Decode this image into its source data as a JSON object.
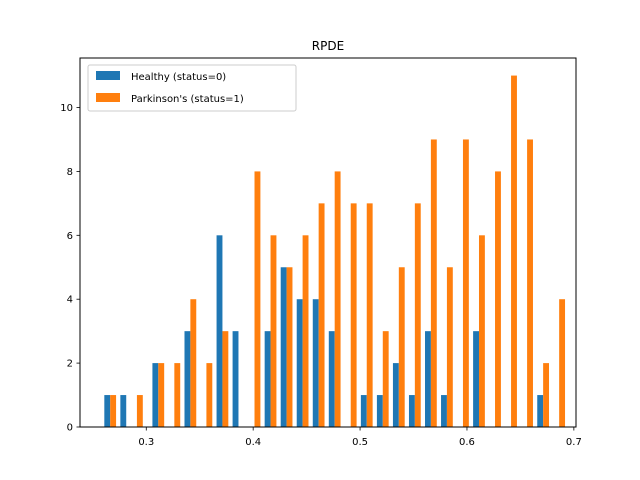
{
  "chart_data": {
    "type": "bar",
    "title": "RPDE",
    "xlabel": "",
    "ylabel": "",
    "xlim": [
      0.238,
      0.702
    ],
    "ylim": [
      0,
      11.55
    ],
    "xticks": [
      0.3,
      0.4,
      0.5,
      0.6,
      0.7
    ],
    "yticks": [
      0,
      2,
      4,
      6,
      8,
      10
    ],
    "grid": false,
    "legend_position": "top-left",
    "bar_width": 0.0055,
    "series": [
      {
        "name": "Healthy (status=0)",
        "color": "#1f77b4",
        "bars": [
          {
            "x": 0.2635,
            "value": 1
          },
          {
            "x": 0.2785,
            "value": 1
          },
          {
            "x": 0.3085,
            "value": 2
          },
          {
            "x": 0.3385,
            "value": 3
          },
          {
            "x": 0.3685,
            "value": 6
          },
          {
            "x": 0.3835,
            "value": 3
          },
          {
            "x": 0.4135,
            "value": 3
          },
          {
            "x": 0.4285,
            "value": 5
          },
          {
            "x": 0.4435,
            "value": 4
          },
          {
            "x": 0.4585,
            "value": 4
          },
          {
            "x": 0.4735,
            "value": 3
          },
          {
            "x": 0.5035,
            "value": 1
          },
          {
            "x": 0.5185,
            "value": 1
          },
          {
            "x": 0.5335,
            "value": 2
          },
          {
            "x": 0.5485,
            "value": 1
          },
          {
            "x": 0.5635,
            "value": 3
          },
          {
            "x": 0.5785,
            "value": 1
          },
          {
            "x": 0.6085,
            "value": 3
          },
          {
            "x": 0.6685,
            "value": 1
          }
        ]
      },
      {
        "name": "Parkinson's (status=1)",
        "color": "#ff7f0e",
        "bars": [
          {
            "x": 0.269,
            "value": 1
          },
          {
            "x": 0.294,
            "value": 1
          },
          {
            "x": 0.314,
            "value": 2
          },
          {
            "x": 0.329,
            "value": 2
          },
          {
            "x": 0.344,
            "value": 4
          },
          {
            "x": 0.359,
            "value": 2
          },
          {
            "x": 0.374,
            "value": 3
          },
          {
            "x": 0.404,
            "value": 8
          },
          {
            "x": 0.419,
            "value": 6
          },
          {
            "x": 0.434,
            "value": 5
          },
          {
            "x": 0.449,
            "value": 6
          },
          {
            "x": 0.464,
            "value": 7
          },
          {
            "x": 0.479,
            "value": 8
          },
          {
            "x": 0.494,
            "value": 7
          },
          {
            "x": 0.509,
            "value": 7
          },
          {
            "x": 0.524,
            "value": 3
          },
          {
            "x": 0.539,
            "value": 5
          },
          {
            "x": 0.554,
            "value": 7
          },
          {
            "x": 0.569,
            "value": 9
          },
          {
            "x": 0.584,
            "value": 5
          },
          {
            "x": 0.599,
            "value": 9
          },
          {
            "x": 0.614,
            "value": 6
          },
          {
            "x": 0.629,
            "value": 8
          },
          {
            "x": 0.644,
            "value": 11
          },
          {
            "x": 0.659,
            "value": 9
          },
          {
            "x": 0.674,
            "value": 2
          },
          {
            "x": 0.689,
            "value": 4
          }
        ]
      }
    ]
  }
}
